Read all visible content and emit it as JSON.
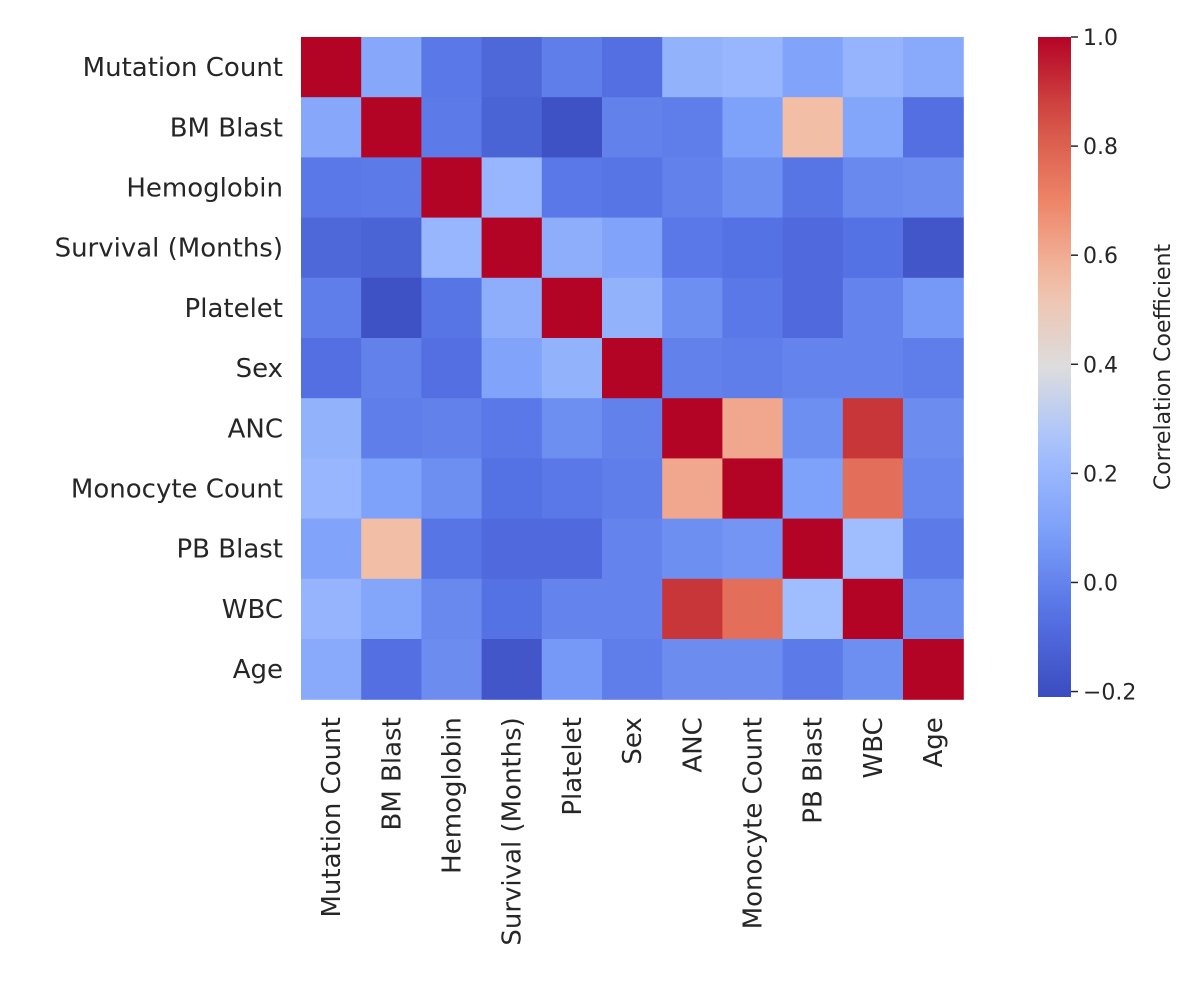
{
  "chart_data": {
    "type": "heatmap",
    "title": "",
    "row_labels": [
      "Mutation Count",
      "BM Blast",
      "Hemoglobin",
      "Survival (Months)",
      "Platelet",
      "Sex",
      "ANC",
      "Monocyte Count",
      "PB Blast",
      "WBC",
      "Age"
    ],
    "col_labels": [
      "Mutation Count",
      "BM Blast",
      "Hemoglobin",
      "Survival (Months)",
      "Platelet",
      "Sex",
      "ANC",
      "Monocyte Count",
      "PB Blast",
      "WBC",
      "Age"
    ],
    "values": [
      [
        1.0,
        0.13,
        -0.04,
        -0.1,
        -0.02,
        -0.07,
        0.18,
        0.2,
        0.11,
        0.19,
        0.14
      ],
      [
        0.13,
        1.0,
        -0.03,
        -0.12,
        -0.19,
        -0.01,
        -0.02,
        0.1,
        0.55,
        0.12,
        -0.07
      ],
      [
        -0.04,
        -0.03,
        1.0,
        0.2,
        -0.04,
        -0.05,
        -0.01,
        0.04,
        -0.05,
        0.02,
        0.03
      ],
      [
        -0.1,
        -0.12,
        0.2,
        1.0,
        0.16,
        0.11,
        -0.04,
        -0.06,
        -0.09,
        -0.06,
        -0.17
      ],
      [
        -0.02,
        -0.19,
        -0.05,
        0.16,
        1.0,
        0.18,
        0.04,
        -0.04,
        -0.09,
        0.0,
        0.07
      ],
      [
        -0.07,
        -0.01,
        -0.07,
        0.11,
        0.18,
        1.0,
        -0.01,
        -0.02,
        0.0,
        0.0,
        -0.02
      ],
      [
        0.18,
        -0.02,
        -0.01,
        -0.04,
        0.04,
        -0.01,
        1.0,
        0.61,
        0.04,
        0.9,
        0.03
      ],
      [
        0.2,
        0.1,
        0.04,
        -0.06,
        -0.04,
        -0.02,
        0.61,
        1.0,
        0.1,
        0.76,
        0.01
      ],
      [
        0.11,
        0.55,
        -0.05,
        -0.09,
        -0.09,
        0.0,
        0.04,
        0.06,
        1.0,
        0.23,
        -0.03
      ],
      [
        0.19,
        0.12,
        0.02,
        -0.06,
        0.0,
        0.0,
        0.9,
        0.76,
        0.23,
        1.0,
        0.04
      ],
      [
        0.14,
        -0.07,
        0.03,
        -0.17,
        0.07,
        -0.02,
        0.03,
        0.03,
        -0.03,
        0.04,
        1.0
      ]
    ],
    "vmin": -0.21,
    "vmax": 1.0,
    "colormap": "coolwarm",
    "colorbar": {
      "label": "Correlation Coefficient",
      "ticks": [
        1.0,
        0.8,
        0.6,
        0.4,
        0.2,
        0.0,
        -0.2
      ],
      "tick_labels": [
        "1.0",
        "0.8",
        "0.6",
        "0.4",
        "0.2",
        "0.0",
        "−0.2"
      ]
    },
    "grid": false
  }
}
